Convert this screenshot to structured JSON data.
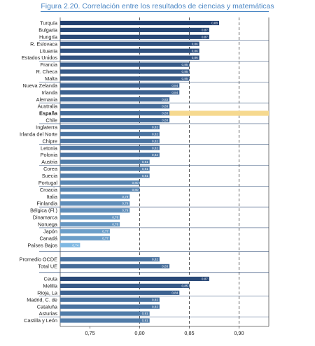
{
  "figure": {
    "title": "Figura 2.20. Correlación entre los resultados de ciencias y matemáticas"
  },
  "colors": {
    "title": "#4a86c4",
    "highlight": "#f6d98f",
    "bar_dark": "#23406f",
    "bar_light": "#7fb8e2",
    "separator": "#23406f"
  },
  "chart_data": {
    "type": "bar",
    "orientation": "horizontal",
    "title": "Figura 2.20. Correlación entre los resultados de ciencias y matemáticas",
    "xlabel": "",
    "ylabel": "",
    "xlim": [
      0.72,
      0.93
    ],
    "xticks": [
      0.75,
      0.8,
      0.85,
      0.9
    ],
    "xtick_labels": [
      "0,75",
      "0,80",
      "0,85",
      "0,90"
    ],
    "grid": "dashed vertical lines at 0,80, 0,85 and 0,90",
    "highlight_category": "España",
    "groups": [
      {
        "categories": [
          "Turquía",
          "Bulgaria",
          "Hungría",
          "R. Eslovaca",
          "Lituania",
          "Estados Unidos",
          "Francia",
          "R. Checa",
          "Malta",
          "Nueva Zelanda",
          "Irlanda",
          "Alemania",
          "Australia",
          "España",
          "Chile",
          "Inglaterra",
          "Irlanda del Norte",
          "Chipre",
          "Letonia",
          "Polonia",
          "Austria",
          "Corea",
          "Suecia",
          "Portugal",
          "Croacia",
          "Italia",
          "Finlandia",
          "Bélgica (Fl.)",
          "Dinamarca",
          "Noruega",
          "Japón",
          "Canadá",
          "Países Bajos"
        ],
        "values": [
          0.88,
          0.87,
          0.87,
          0.86,
          0.86,
          0.86,
          0.85,
          0.85,
          0.85,
          0.84,
          0.84,
          0.83,
          0.83,
          0.83,
          0.83,
          0.82,
          0.82,
          0.82,
          0.82,
          0.82,
          0.81,
          0.81,
          0.81,
          0.8,
          0.8,
          0.79,
          0.79,
          0.79,
          0.78,
          0.78,
          0.77,
          0.77,
          0.74
        ],
        "labels": [
          "0,88",
          "0,87",
          "0,87",
          "0,86",
          "0,86",
          "0,86",
          "0,85",
          "0,85",
          "0,85",
          "0,84",
          "0,84",
          "0,83",
          "0,83",
          "0,83",
          "0,83",
          "0,82",
          "0,82",
          "0,82",
          "0,82",
          "0,82",
          "0,81",
          "0,81",
          "0,81",
          "0,80",
          "0,80",
          "0,79",
          "0,79",
          "0,79",
          "0,78",
          "0,78",
          "0,77",
          "0,77",
          "0,74"
        ]
      },
      {
        "categories": [
          "Promedio OCDE",
          "Total UE"
        ],
        "values": [
          0.82,
          0.83
        ],
        "labels": [
          "0,82",
          "0,83"
        ]
      },
      {
        "categories": [
          "Ceuta",
          "Melilla",
          "Rioja, La",
          "Madrid, C. de",
          "Cataluña",
          "Asturias",
          "Castilla y León"
        ],
        "values": [
          0.87,
          0.85,
          0.84,
          0.82,
          0.82,
          0.81,
          0.81
        ],
        "labels": [
          "0,87",
          "0,85",
          "0,84",
          "0,82",
          "0,82",
          "0,81",
          "0,81"
        ]
      }
    ]
  }
}
